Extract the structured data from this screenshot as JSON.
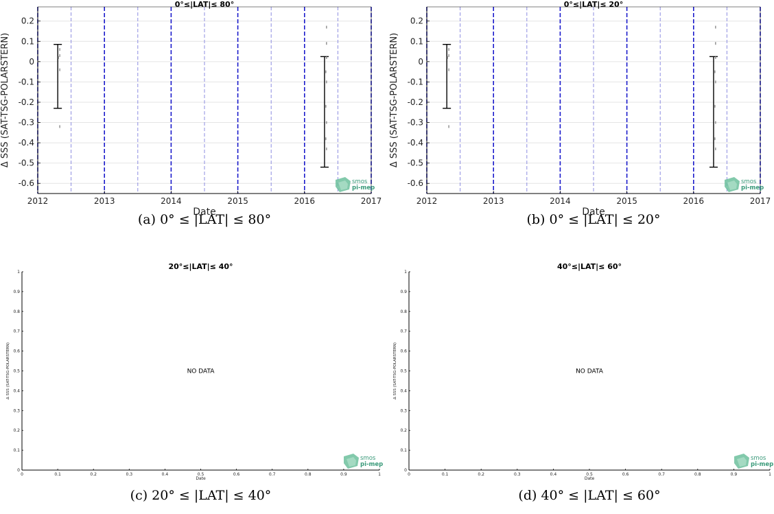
{
  "chart_data": [
    {
      "type": "scatter",
      "panel": "a",
      "title": "0°≤|LAT|≤ 80°",
      "xlabel": "Date",
      "ylabel": "Δ SSS (SAT-TSG-POLARSTERN)",
      "caption": "(a) 0° ≤ |LAT| ≤ 80°",
      "xlim": [
        2012,
        2017
      ],
      "ylim": [
        -0.65,
        0.27
      ],
      "x_ticks": [
        "2012",
        "2013",
        "2014",
        "2015",
        "2016",
        "2017"
      ],
      "y_ticks": [
        "0.2",
        "0.1",
        "0",
        "-0.1",
        "-0.2",
        "-0.3",
        "-0.4",
        "-0.5",
        "-0.6"
      ],
      "year_lines": [
        2012,
        2013,
        2014,
        2015,
        2016,
        2017
      ],
      "halfyear_lines": [
        2012.5,
        2013.5,
        2014.5,
        2015.5,
        2016.5
      ],
      "grid": true,
      "errorbars": [
        {
          "x": 2012.3,
          "high": 0.085,
          "low": -0.23
        },
        {
          "x": 2016.3,
          "high": 0.025,
          "low": -0.52
        }
      ],
      "points": [
        {
          "x": 2012.33,
          "y": 0.06
        },
        {
          "x": 2012.33,
          "y": 0.03
        },
        {
          "x": 2012.33,
          "y": -0.04
        },
        {
          "x": 2012.33,
          "y": -0.32
        },
        {
          "x": 2012.31,
          "y": 0.02
        },
        {
          "x": 2016.33,
          "y": 0.17
        },
        {
          "x": 2016.33,
          "y": 0.09
        },
        {
          "x": 2016.33,
          "y": 0.02
        },
        {
          "x": 2016.32,
          "y": -0.05
        },
        {
          "x": 2016.33,
          "y": -0.1
        },
        {
          "x": 2016.32,
          "y": -0.22
        },
        {
          "x": 2016.33,
          "y": -0.3
        },
        {
          "x": 2016.32,
          "y": -0.38
        },
        {
          "x": 2016.33,
          "y": -0.43
        }
      ],
      "logo": [
        "smos",
        "pi-mep"
      ]
    },
    {
      "type": "scatter",
      "panel": "b",
      "title": "0°≤|LAT|≤ 20°",
      "xlabel": "Date",
      "ylabel": "Δ SSS (SAT-TSG-POLARSTERN)",
      "caption": "(b) 0° ≤ |LAT| ≤ 20°",
      "xlim": [
        2012,
        2017
      ],
      "ylim": [
        -0.65,
        0.27
      ],
      "x_ticks": [
        "2012",
        "2013",
        "2014",
        "2015",
        "2016",
        "2017"
      ],
      "y_ticks": [
        "0.2",
        "0.1",
        "0",
        "-0.1",
        "-0.2",
        "-0.3",
        "-0.4",
        "-0.5",
        "-0.6"
      ],
      "year_lines": [
        2012,
        2013,
        2014,
        2015,
        2016,
        2017
      ],
      "halfyear_lines": [
        2012.5,
        2013.5,
        2014.5,
        2015.5,
        2016.5
      ],
      "grid": true,
      "errorbars": [
        {
          "x": 2012.3,
          "high": 0.085,
          "low": -0.23
        },
        {
          "x": 2016.3,
          "high": 0.025,
          "low": -0.52
        }
      ],
      "points": [
        {
          "x": 2012.33,
          "y": 0.06
        },
        {
          "x": 2012.33,
          "y": 0.03
        },
        {
          "x": 2012.33,
          "y": -0.04
        },
        {
          "x": 2012.33,
          "y": -0.32
        },
        {
          "x": 2012.31,
          "y": 0.02
        },
        {
          "x": 2016.33,
          "y": 0.17
        },
        {
          "x": 2016.33,
          "y": 0.09
        },
        {
          "x": 2016.33,
          "y": 0.02
        },
        {
          "x": 2016.32,
          "y": -0.05
        },
        {
          "x": 2016.33,
          "y": -0.1
        },
        {
          "x": 2016.32,
          "y": -0.22
        },
        {
          "x": 2016.33,
          "y": -0.3
        },
        {
          "x": 2016.32,
          "y": -0.38
        },
        {
          "x": 2016.33,
          "y": -0.43
        }
      ],
      "logo": [
        "smos",
        "pi-mep"
      ]
    },
    {
      "type": "scatter",
      "panel": "c",
      "title": "20°≤|LAT|≤ 40°",
      "xlabel": "Date",
      "ylabel": "Δ SSS (SAT-TSG-POLARSTERN)",
      "caption": "(c) 20° ≤ |LAT| ≤ 40°",
      "xlim": [
        0,
        1
      ],
      "ylim": [
        0,
        1
      ],
      "x_ticks": [
        "0",
        "0.1",
        "0.2",
        "0.3",
        "0.4",
        "0.5",
        "0.6",
        "0.7",
        "0.8",
        "0.9",
        "1"
      ],
      "y_ticks": [
        "1",
        "0.9",
        "0.8",
        "0.7",
        "0.6",
        "0.5",
        "0.4",
        "0.3",
        "0.2",
        "0.1",
        "0"
      ],
      "annotation": "NO DATA",
      "logo": [
        "smos",
        "pi-mep"
      ]
    },
    {
      "type": "scatter",
      "panel": "d",
      "title": "40°≤|LAT|≤ 60°",
      "xlabel": "Date",
      "ylabel": "Δ SSS (SAT-TSG-POLARSTERN)",
      "caption": "(d) 40° ≤ |LAT| ≤ 60°",
      "xlim": [
        0,
        1
      ],
      "ylim": [
        0,
        1
      ],
      "x_ticks": [
        "0",
        "0.1",
        "0.2",
        "0.3",
        "0.4",
        "0.5",
        "0.6",
        "0.7",
        "0.8",
        "0.9",
        "1"
      ],
      "y_ticks": [
        "1",
        "0.9",
        "0.8",
        "0.7",
        "0.6",
        "0.5",
        "0.4",
        "0.3",
        "0.2",
        "0.1",
        "0"
      ],
      "annotation": "NO DATA",
      "logo": [
        "smos",
        "pi-mep"
      ]
    }
  ],
  "colors": {
    "year_line": "#1a1acc",
    "halfyear_line": "#8c8ce0",
    "grid": "#e4e4e4",
    "errorbar": "#000000",
    "logo_text": "#3a9a7a",
    "logo_shape": "#6cbf9c"
  }
}
